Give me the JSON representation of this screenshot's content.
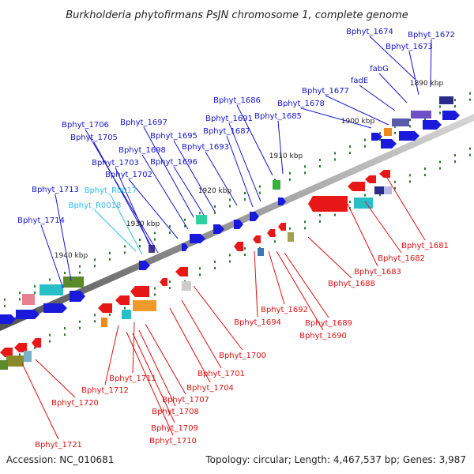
{
  "title": "Burkholderia phytofirmans PsJN chromosome 1, complete genome",
  "footer": {
    "accession": "Accession: NC_010681",
    "topology": "Topology: circular; Length: 4,467,537 bp; Genes: 3,987"
  },
  "colors": {
    "plus_label": "#1515c8",
    "minus_label": "#dd1111",
    "rna_label": "#33bbee",
    "backbone": "#9a9a9a"
  },
  "kbp_labels": [
    "1890 kbp",
    "1900 kbp",
    "1910 kbp",
    "1920 kbp",
    "1930 kbp",
    "1940 kbp"
  ],
  "plus_labels": [
    "Bphyt_1674",
    "Bphyt_1672",
    "Bphyt_1673",
    "fabG",
    "fadE",
    "Bphyt_1677",
    "Bphyt_1678",
    "Bphyt_1686",
    "Bphyt_1685",
    "Bphyt_1691",
    "Bphyt_1687",
    "Bphyt_1706",
    "Bphyt_1697",
    "Bphyt_1705",
    "Bphyt_1695",
    "Bphyt_1693",
    "Bphyt_1698",
    "Bphyt_1696",
    "Bphyt_1703",
    "Bphyt_1702",
    "Bphyt_1713",
    "Bphyt_1714"
  ],
  "rna_labels": [
    "Bphyt_R0017",
    "Bphyt_R0018"
  ],
  "minus_labels": [
    "Bphyt_1681",
    "Bphyt_1682",
    "Bphyt_1683",
    "Bphyt_1688",
    "Bphyt_1692",
    "Bphyt_1689",
    "Bphyt_1690",
    "Bphyt_1694",
    "Bphyt_1700",
    "Bphyt_1701",
    "Bphyt_1704",
    "Bphyt_1711",
    "Bphyt_1707",
    "Bphyt_1712",
    "Bphyt_1708",
    "Bphyt_1709",
    "Bphyt_1710",
    "Bphyt_1720",
    "Bphyt_1721"
  ]
}
